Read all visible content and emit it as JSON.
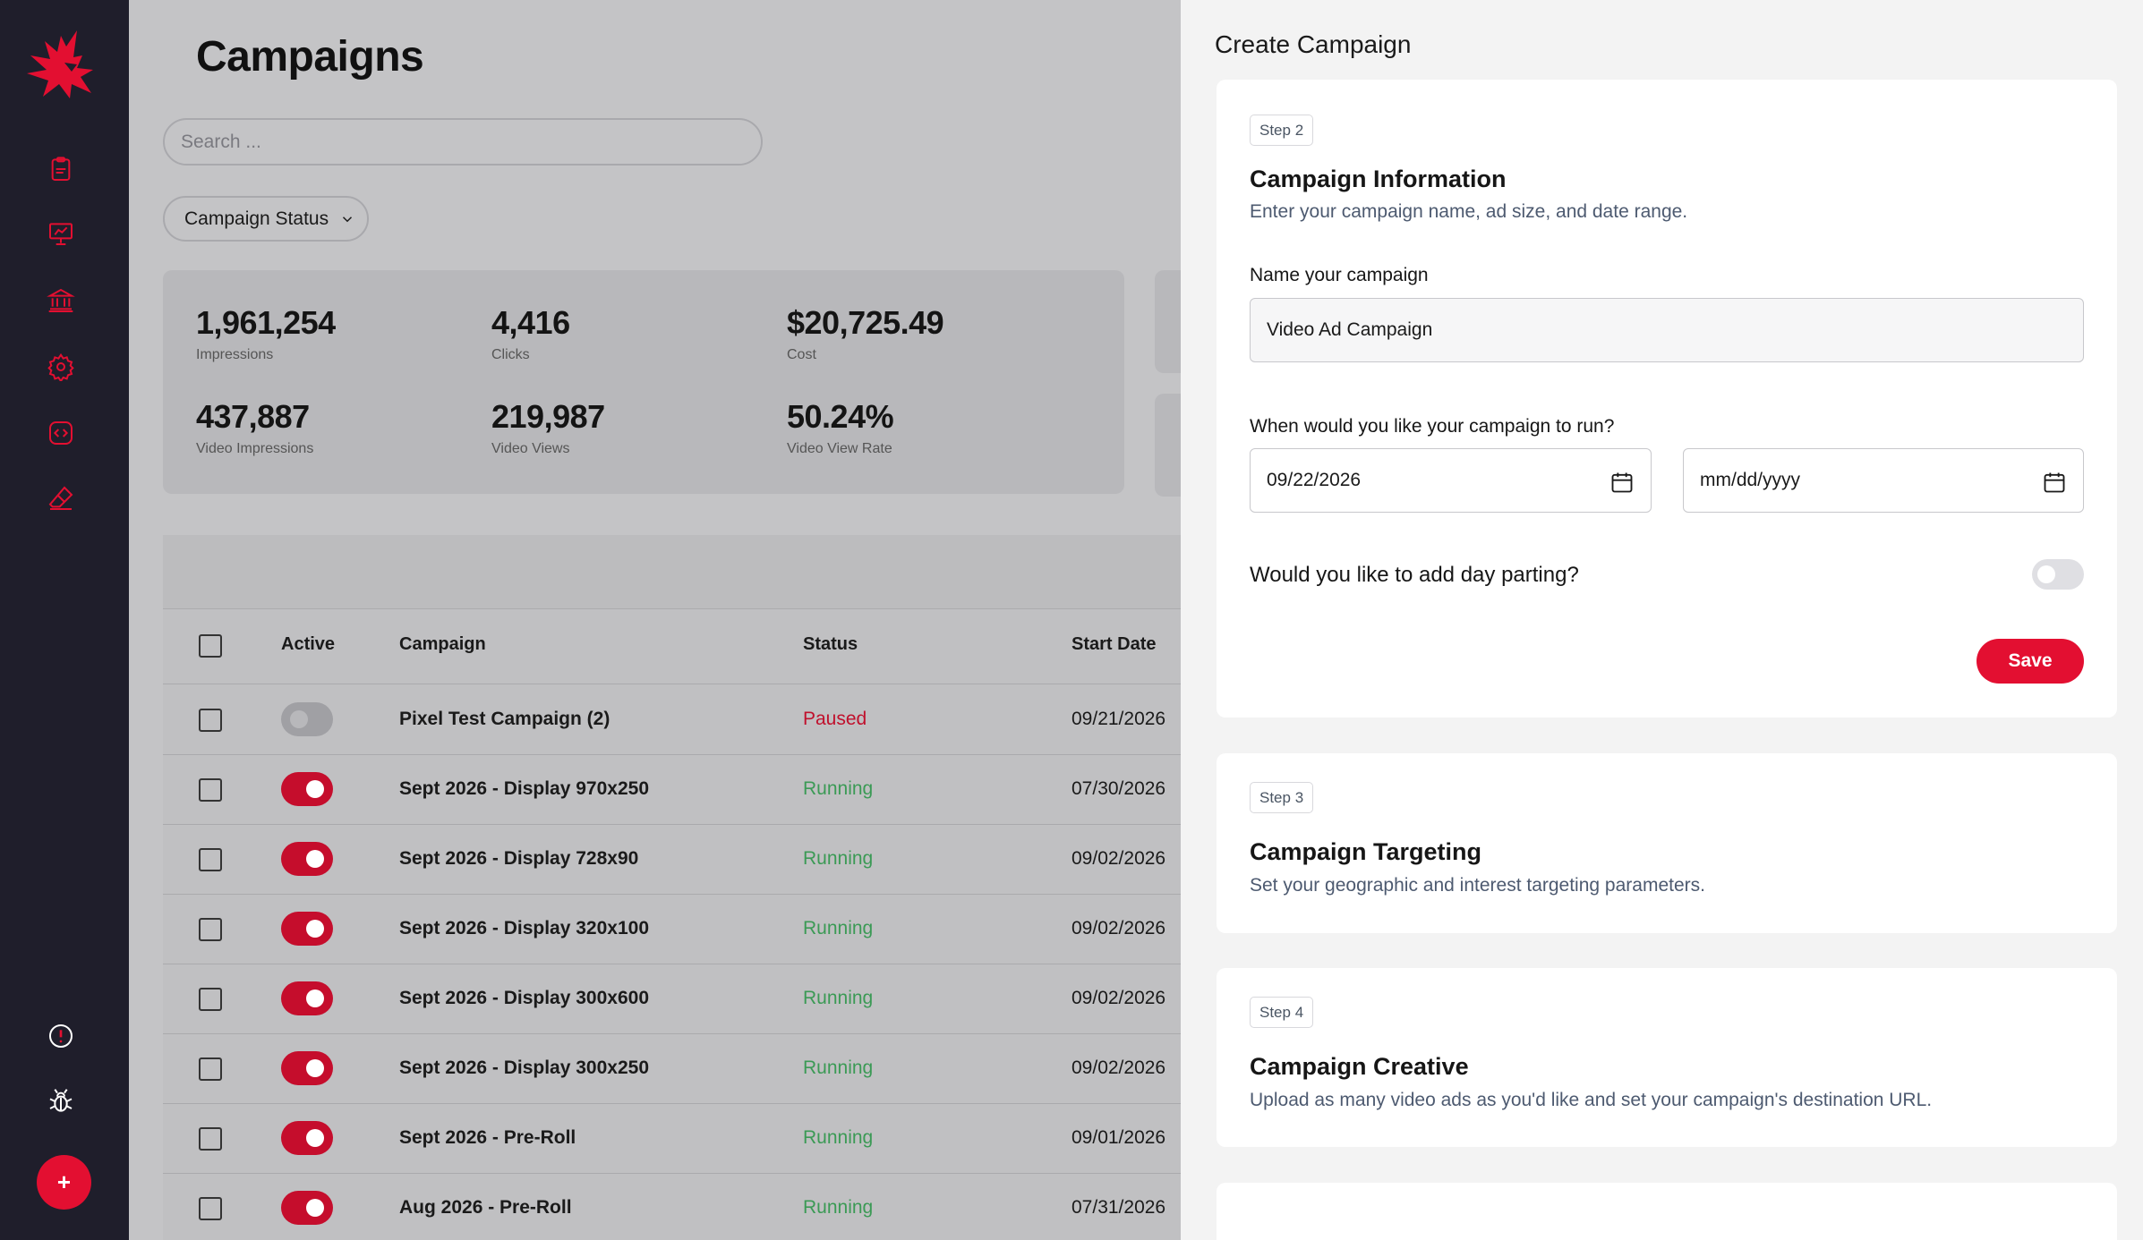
{
  "sidebar": {
    "logo": "eagle-logo",
    "items": [
      {
        "name": "clipboard-icon"
      },
      {
        "name": "presentation-chart-icon"
      },
      {
        "name": "bank-icon"
      },
      {
        "name": "settings-gear-icon"
      },
      {
        "name": "code-icon"
      },
      {
        "name": "eraser-icon"
      }
    ],
    "bottom": [
      {
        "name": "alert-circle-icon"
      },
      {
        "name": "bug-icon"
      }
    ],
    "add_label": "+"
  },
  "main": {
    "title": "Campaigns",
    "search_placeholder": "Search ...",
    "status_filter_label": "Campaign Status",
    "stats": [
      {
        "value": "1,961,254",
        "label": "Impressions"
      },
      {
        "value": "4,416",
        "label": "Clicks"
      },
      {
        "value": "$20,725.49",
        "label": "Cost"
      },
      {
        "value": "437,887",
        "label": "Video Impressions"
      },
      {
        "value": "219,987",
        "label": "Video Views"
      },
      {
        "value": "50.24%",
        "label": "Video View Rate"
      }
    ],
    "table": {
      "headers": {
        "active": "Active",
        "campaign": "Campaign",
        "status": "Status",
        "start_date": "Start Date"
      },
      "rows": [
        {
          "active": false,
          "campaign": "Pixel Test Campaign (2)",
          "status": "Paused",
          "start_date": "09/21/2026"
        },
        {
          "active": true,
          "campaign": "Sept 2026 - Display 970x250",
          "status": "Running",
          "start_date": "07/30/2026"
        },
        {
          "active": true,
          "campaign": "Sept 2026 - Display 728x90",
          "status": "Running",
          "start_date": "09/02/2026"
        },
        {
          "active": true,
          "campaign": "Sept 2026 - Display 320x100",
          "status": "Running",
          "start_date": "09/02/2026"
        },
        {
          "active": true,
          "campaign": "Sept 2026 - Display 300x600",
          "status": "Running",
          "start_date": "09/02/2026"
        },
        {
          "active": true,
          "campaign": "Sept 2026 - Display 300x250",
          "status": "Running",
          "start_date": "09/02/2026"
        },
        {
          "active": true,
          "campaign": "Sept 2026 - Pre-Roll",
          "status": "Running",
          "start_date": "09/01/2026"
        },
        {
          "active": true,
          "campaign": "Aug 2026 - Pre-Roll",
          "status": "Running",
          "start_date": "07/31/2026"
        }
      ]
    }
  },
  "panel": {
    "title": "Create Campaign",
    "step2": {
      "badge": "Step 2",
      "title": "Campaign Information",
      "desc": "Enter your campaign name, ad size, and date range.",
      "name_label": "Name your campaign",
      "name_value": "Video Ad Campaign",
      "run_label": "When would you like your campaign to run?",
      "start_date": "09/22/2026",
      "end_date_placeholder": "mm/dd/yyyy",
      "daypart_label": "Would you like to add day parting?",
      "daypart_on": false,
      "save_label": "Save"
    },
    "step3": {
      "badge": "Step 3",
      "title": "Campaign Targeting",
      "desc": "Set your geographic and interest targeting parameters."
    },
    "step4": {
      "badge": "Step 4",
      "title": "Campaign Creative",
      "desc": "Upload as many video ads as you'd like and set your campaign's destination URL."
    }
  },
  "colors": {
    "brand_red": "#e30f31",
    "sidebar_bg": "#1f1e2b",
    "running_green": "#3b9a55",
    "paused_red": "#c0102c"
  }
}
